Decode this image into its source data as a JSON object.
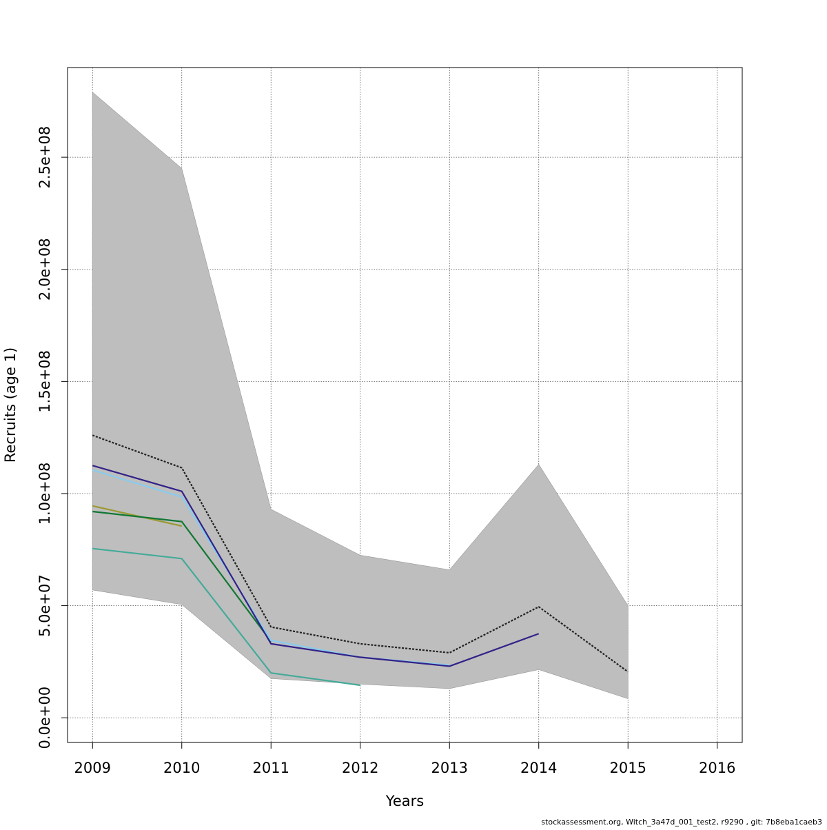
{
  "chart_data": {
    "type": "line",
    "xlabel": "Years",
    "ylabel": "Recruits (age 1)",
    "xlim": [
      2008.72,
      2016.28
    ],
    "ylim": [
      -11000000,
      290000000
    ],
    "x_ticks": [
      2009,
      2010,
      2011,
      2012,
      2013,
      2014,
      2015,
      2016
    ],
    "x_tick_labels": [
      "2009",
      "2010",
      "2011",
      "2012",
      "2013",
      "2014",
      "2015",
      "2016"
    ],
    "y_ticks": [
      0,
      50000000,
      100000000,
      150000000,
      200000000,
      250000000
    ],
    "y_tick_labels": [
      "0.0e+00",
      "5.0e+07",
      "1.0e+08",
      "1.5e+08",
      "2.0e+08",
      "2.5e+08"
    ],
    "grid": true,
    "confidence_band": {
      "color": "#bebebe",
      "x": [
        2009,
        2010,
        2011,
        2012,
        2013,
        2014,
        2015
      ],
      "lower": [
        57000000,
        50500000,
        17500000,
        15000000,
        13000000,
        21500000,
        8500000
      ],
      "upper": [
        279000000,
        245000000,
        93000000,
        72500000,
        66000000,
        113000000,
        50000000
      ]
    },
    "series": [
      {
        "color": "#222222",
        "dashed": true,
        "x": [
          2009,
          2010,
          2011,
          2012,
          2013,
          2014,
          2015
        ],
        "values": [
          126000000,
          111500000,
          40500000,
          33000000,
          29000000,
          49500000,
          20500000
        ]
      },
      {
        "color": "#44aa99",
        "dashed": false,
        "x": [
          2009,
          2010,
          2011,
          2012
        ],
        "values": [
          75500000,
          71000000,
          20000000,
          14500000
        ]
      },
      {
        "color": "#999933",
        "dashed": false,
        "x": [
          2009,
          2010
        ],
        "values": [
          94500000,
          85500000
        ]
      },
      {
        "color": "#117733",
        "dashed": false,
        "x": [
          2009,
          2010,
          2011
        ],
        "values": [
          92000000,
          87500000,
          34000000
        ]
      },
      {
        "color": "#88ccee",
        "dashed": false,
        "x": [
          2009,
          2010,
          2011,
          2012,
          2013
        ],
        "values": [
          110500000,
          98500000,
          34500000,
          27000000,
          23500000
        ]
      },
      {
        "color": "#332288",
        "dashed": false,
        "x": [
          2009,
          2010,
          2011,
          2012,
          2013,
          2014
        ],
        "values": [
          112500000,
          101000000,
          33000000,
          27000000,
          23000000,
          37500000
        ]
      }
    ]
  },
  "footer": {
    "source_note": "stockassessment.org, Witch_3a47d_001_test2, r9290 , git: 7b8eba1caeb3"
  }
}
